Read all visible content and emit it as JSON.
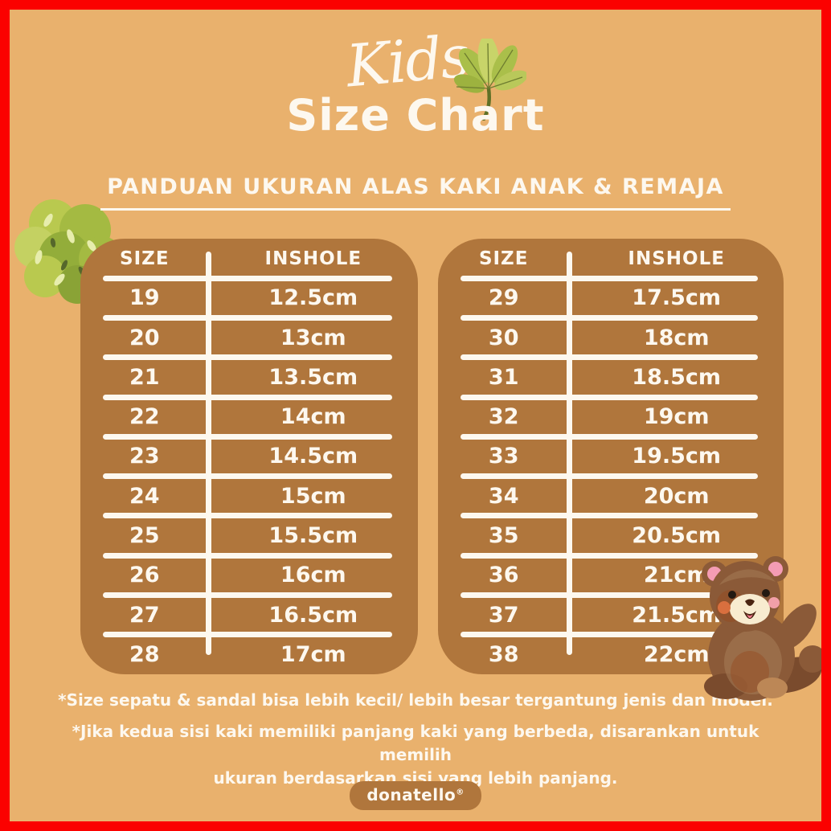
{
  "title": {
    "script": "Kids",
    "main": "Size Chart"
  },
  "subtitle": "PANDUAN UKURAN ALAS KAKI ANAK & REMAJA",
  "tables": [
    {
      "headers": [
        "SIZE",
        "INSHOLE"
      ],
      "rows": [
        [
          "19",
          "12.5cm"
        ],
        [
          "20",
          "13cm"
        ],
        [
          "21",
          "13.5cm"
        ],
        [
          "22",
          "14cm"
        ],
        [
          "23",
          "14.5cm"
        ],
        [
          "24",
          "15cm"
        ],
        [
          "25",
          "15.5cm"
        ],
        [
          "26",
          "16cm"
        ],
        [
          "27",
          "16.5cm"
        ],
        [
          "28",
          "17cm"
        ]
      ]
    },
    {
      "headers": [
        "SIZE",
        "INSHOLE"
      ],
      "rows": [
        [
          "29",
          "17.5cm"
        ],
        [
          "30",
          "18cm"
        ],
        [
          "31",
          "18.5cm"
        ],
        [
          "32",
          "19cm"
        ],
        [
          "33",
          "19.5cm"
        ],
        [
          "34",
          "20cm"
        ],
        [
          "35",
          "20.5cm"
        ],
        [
          "36",
          "21cm"
        ],
        [
          "37",
          "21.5cm"
        ],
        [
          "38",
          "22cm"
        ]
      ]
    }
  ],
  "notes": [
    "*Size sepatu & sandal bisa lebih kecil/ lebih besar tergantung jenis dan model.",
    "*Jika kedua sisi kaki memiliki panjang kaki yang berbeda, disarankan untuk memilih\nukuran berdasarkan sisi yang lebih panjang."
  ],
  "brand": {
    "name": "donatello",
    "reg": "®"
  },
  "icons": [
    "leaf-icon",
    "bush-icon",
    "teddy-bear-icon"
  ],
  "colors": {
    "background": "#e9b16d",
    "table_brown": "#b0763c",
    "text_white": "#fdf8ef",
    "border_red": "#fb0100",
    "leaf_green": "#aabf4a",
    "leaf_green_light": "#c8d469",
    "bear_brown": "#8b5a38",
    "bear_pink": "#f49cb4"
  }
}
